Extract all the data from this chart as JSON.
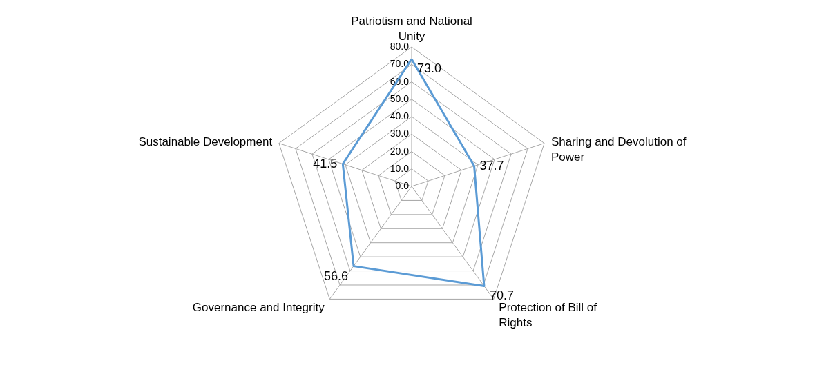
{
  "chart_data": {
    "type": "radar",
    "categories": [
      "Patriotism and National Unity",
      "Sharing and Devolution of Power",
      "Protection of Bill of Rights",
      "Governance and Integrity",
      "Sustainable Development"
    ],
    "series": [
      {
        "color": "#5b9bd5",
        "values": [
          73.0,
          37.7,
          70.7,
          56.6,
          41.5
        ],
        "value_labels": [
          "73.0",
          "37.7",
          "70.7",
          "56.6",
          "41.5"
        ]
      }
    ],
    "ylim": [
      0,
      80
    ],
    "yticks": [
      {
        "value": 0,
        "label": "0.0"
      },
      {
        "value": 10,
        "label": "10.0"
      },
      {
        "value": 20,
        "label": "20.0"
      },
      {
        "value": 30,
        "label": "30.0"
      },
      {
        "value": 40,
        "label": "40.0"
      },
      {
        "value": 50,
        "label": "50.0"
      },
      {
        "value": 60,
        "label": "60.0"
      },
      {
        "value": 70,
        "label": "70.0"
      },
      {
        "value": 80,
        "label": "80.0"
      }
    ],
    "grid": true
  }
}
